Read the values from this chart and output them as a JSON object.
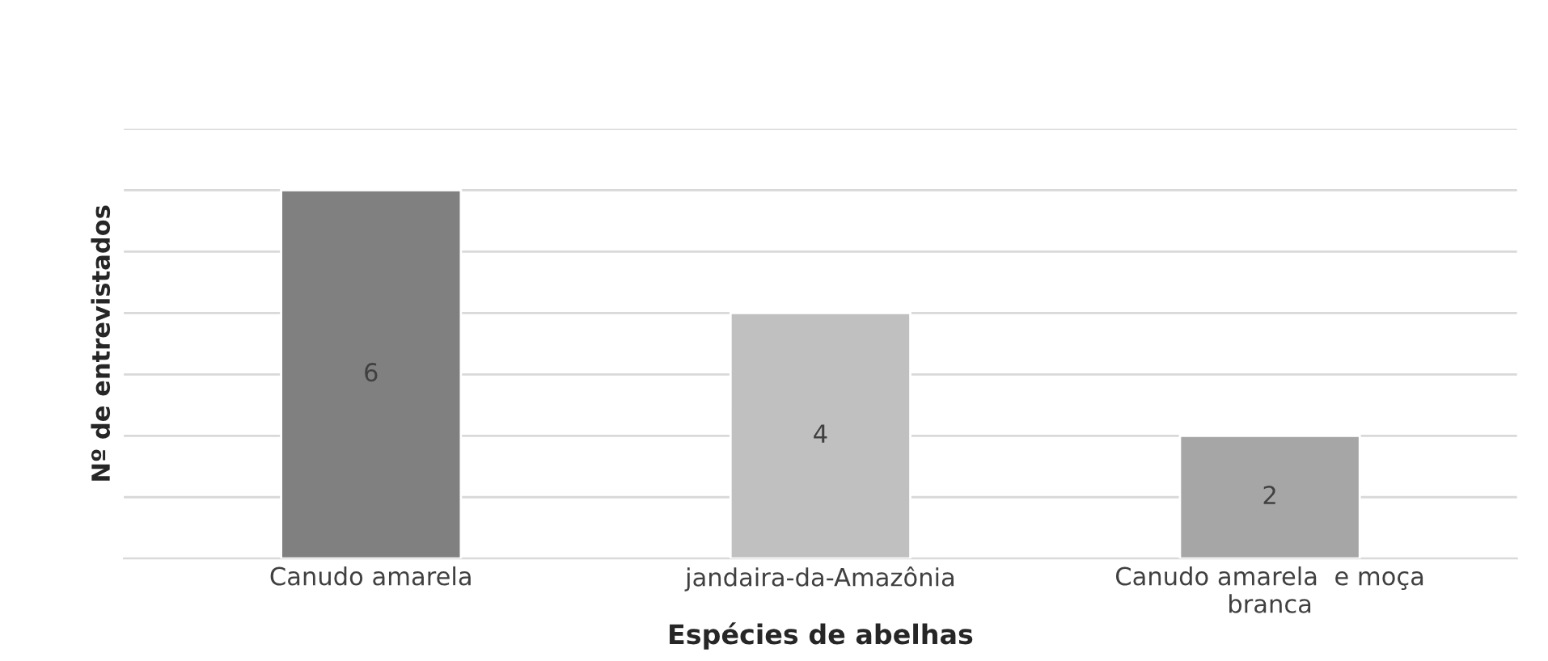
{
  "chart_data": {
    "type": "bar",
    "xlabel": "Espécies de abelhas",
    "ylabel": "Nº de entrevistados",
    "categories": [
      "Canudo amarela",
      "jandaira-da-Amazônia",
      "Canudo amarela  e moça\nbranca"
    ],
    "values": [
      6,
      4,
      2
    ],
    "colors": [
      "#808080",
      "#c0c0c0",
      "#a6a6a6"
    ],
    "ylim": [
      0,
      7
    ],
    "yticks": [
      {
        "value": 0,
        "label": null
      },
      {
        "value": 1,
        "label": null
      },
      {
        "value": 2,
        "label": null
      },
      {
        "value": 3,
        "label": null
      },
      {
        "value": 4,
        "label": null
      },
      {
        "value": 5,
        "label": null
      },
      {
        "value": 6,
        "label": null
      },
      {
        "value": 7,
        "label": null
      }
    ],
    "grid": "y",
    "tick_labels": "x",
    "data_labels": true
  }
}
